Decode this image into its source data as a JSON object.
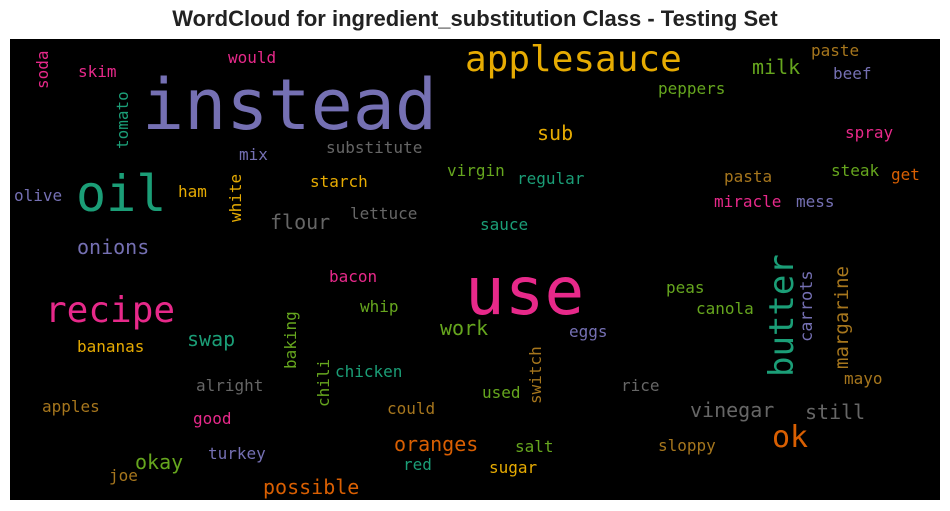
{
  "chart_data": {
    "type": "wordcloud",
    "title": "WordCloud for ingredient_substitution Class - Testing Set",
    "background": "#000000",
    "palette": [
      "#7570b3",
      "#e7298a",
      "#1b9e77",
      "#e6ab02",
      "#66a61e",
      "#d95f02",
      "#a6761d",
      "#666666"
    ],
    "words": [
      {
        "text": "instead",
        "color": "#7570b3",
        "rank": 1
      },
      {
        "text": "use",
        "color": "#e7298a",
        "rank": 1
      },
      {
        "text": "oil",
        "color": "#1b9e77",
        "rank": 2
      },
      {
        "text": "applesauce",
        "color": "#e6ab02",
        "rank": 3
      },
      {
        "text": "recipe",
        "color": "#e7298a",
        "rank": 3
      },
      {
        "text": "butter",
        "color": "#1b9e77",
        "rank": 4,
        "vertical": true
      },
      {
        "text": "ok",
        "color": "#d95f02",
        "rank": 4
      },
      {
        "text": "milk",
        "color": "#66a61e",
        "rank": 5
      },
      {
        "text": "sub",
        "color": "#e6ab02",
        "rank": 5
      },
      {
        "text": "flour",
        "color": "#666666",
        "rank": 5
      },
      {
        "text": "onions",
        "color": "#7570b3",
        "rank": 5
      },
      {
        "text": "swap",
        "color": "#1b9e77",
        "rank": 5
      },
      {
        "text": "work",
        "color": "#66a61e",
        "rank": 5
      },
      {
        "text": "margarine",
        "color": "#a6761d",
        "rank": 5,
        "vertical": true
      },
      {
        "text": "vinegar",
        "color": "#666666",
        "rank": 5
      },
      {
        "text": "still",
        "color": "#666666",
        "rank": 5
      },
      {
        "text": "oranges",
        "color": "#d95f02",
        "rank": 5
      },
      {
        "text": "okay",
        "color": "#66a61e",
        "rank": 5
      },
      {
        "text": "possible",
        "color": "#d95f02",
        "rank": 5
      },
      {
        "text": "carrots",
        "color": "#7570b3",
        "rank": 6,
        "vertical": true
      },
      {
        "text": "would",
        "color": "#e7298a",
        "rank": 6
      },
      {
        "text": "skim",
        "color": "#e7298a",
        "rank": 6
      },
      {
        "text": "soda",
        "color": "#e7298a",
        "rank": 6,
        "vertical": true
      },
      {
        "text": "tomato",
        "color": "#1b9e77",
        "rank": 6,
        "vertical": true
      },
      {
        "text": "paste",
        "color": "#a6761d",
        "rank": 6
      },
      {
        "text": "beef",
        "color": "#7570b3",
        "rank": 6
      },
      {
        "text": "peppers",
        "color": "#66a61e",
        "rank": 6
      },
      {
        "text": "spray",
        "color": "#e7298a",
        "rank": 6
      },
      {
        "text": "substitute",
        "color": "#666666",
        "rank": 6
      },
      {
        "text": "mix",
        "color": "#7570b3",
        "rank": 6
      },
      {
        "text": "virgin",
        "color": "#66a61e",
        "rank": 6
      },
      {
        "text": "regular",
        "color": "#1b9e77",
        "rank": 6
      },
      {
        "text": "steak",
        "color": "#66a61e",
        "rank": 6
      },
      {
        "text": "pasta",
        "color": "#a6761d",
        "rank": 6
      },
      {
        "text": "get",
        "color": "#d95f02",
        "rank": 6
      },
      {
        "text": "olive",
        "color": "#7570b3",
        "rank": 6
      },
      {
        "text": "ham",
        "color": "#e6ab02",
        "rank": 6
      },
      {
        "text": "white",
        "color": "#e6ab02",
        "rank": 6,
        "vertical": true
      },
      {
        "text": "starch",
        "color": "#e6ab02",
        "rank": 6
      },
      {
        "text": "miracle",
        "color": "#e7298a",
        "rank": 6
      },
      {
        "text": "mess",
        "color": "#7570b3",
        "rank": 6
      },
      {
        "text": "lettuce",
        "color": "#666666",
        "rank": 6
      },
      {
        "text": "sauce",
        "color": "#1b9e77",
        "rank": 6
      },
      {
        "text": "bacon",
        "color": "#e7298a",
        "rank": 6
      },
      {
        "text": "peas",
        "color": "#66a61e",
        "rank": 6
      },
      {
        "text": "whip",
        "color": "#66a61e",
        "rank": 6
      },
      {
        "text": "canola",
        "color": "#66a61e",
        "rank": 6
      },
      {
        "text": "eggs",
        "color": "#7570b3",
        "rank": 6
      },
      {
        "text": "bananas",
        "color": "#e6ab02",
        "rank": 6
      },
      {
        "text": "baking",
        "color": "#66a61e",
        "rank": 6,
        "vertical": true
      },
      {
        "text": "chili",
        "color": "#66a61e",
        "rank": 6,
        "vertical": true
      },
      {
        "text": "chicken",
        "color": "#1b9e77",
        "rank": 6
      },
      {
        "text": "switch",
        "color": "#a6761d",
        "rank": 6,
        "vertical": true
      },
      {
        "text": "rice",
        "color": "#666666",
        "rank": 6
      },
      {
        "text": "mayo",
        "color": "#a6761d",
        "rank": 6
      },
      {
        "text": "alright",
        "color": "#666666",
        "rank": 6
      },
      {
        "text": "used",
        "color": "#66a61e",
        "rank": 6
      },
      {
        "text": "apples",
        "color": "#a6761d",
        "rank": 6
      },
      {
        "text": "could",
        "color": "#a6761d",
        "rank": 6
      },
      {
        "text": "good",
        "color": "#e7298a",
        "rank": 6
      },
      {
        "text": "salt",
        "color": "#66a61e",
        "rank": 6
      },
      {
        "text": "sloppy",
        "color": "#a6761d",
        "rank": 6
      },
      {
        "text": "turkey",
        "color": "#7570b3",
        "rank": 6
      },
      {
        "text": "red",
        "color": "#1b9e77",
        "rank": 6
      },
      {
        "text": "sugar",
        "color": "#e6ab02",
        "rank": 6
      },
      {
        "text": "joe",
        "color": "#a6761d",
        "rank": 6
      }
    ]
  }
}
